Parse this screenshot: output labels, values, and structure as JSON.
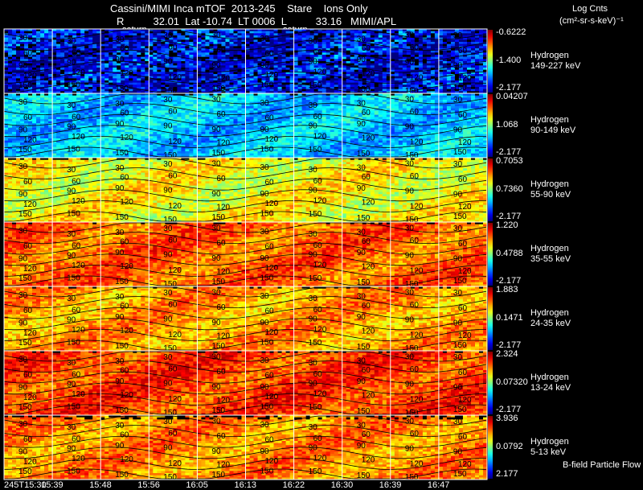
{
  "header": {
    "title": "Cassini/MIMI Inca mTOF  2013-245    Stare    Ions Only",
    "position": "R          32.01  Lat -10.74  LT 0006  L          33.16   MIMI/APL",
    "saturn_labels": [
      "saturn",
      "saturn"
    ],
    "units_title": "Log Cnts",
    "units": "(cm²-sr-s-keV)⁻¹"
  },
  "footer": {
    "flow_label": "B-field Particle Flow"
  },
  "chart_data": {
    "type": "heatmap",
    "x_tick_labels": [
      "245T15:30",
      "15:39",
      "15:48",
      "15:56",
      "16:05",
      "16:13",
      "16:22",
      "16:30",
      "16:39",
      "16:47"
    ],
    "contour_labels": [
      "30",
      "60",
      "90",
      "120",
      "150"
    ],
    "panels": [
      {
        "species": "Hydrogen",
        "energy": "149-227 keV",
        "cbar": [
          "-0.6222",
          "-1.400",
          "-2.177"
        ],
        "level": 0.12
      },
      {
        "species": "Hydrogen",
        "energy": "90-149 keV",
        "cbar": [
          "0.04207",
          "1.068",
          "-2.177"
        ],
        "level": 0.32
      },
      {
        "species": "Hydrogen",
        "energy": "55-90 keV",
        "cbar": [
          "0.7053",
          "0.7360",
          "-2.177"
        ],
        "level": 0.62
      },
      {
        "species": "Hydrogen",
        "energy": "35-55 keV",
        "cbar": [
          "1.220",
          "0.4788",
          "-2.177"
        ],
        "level": 0.78
      },
      {
        "species": "Hydrogen",
        "energy": "24-35 keV",
        "cbar": [
          "1.883",
          "0.1471",
          "-2.177"
        ],
        "level": 0.72
      },
      {
        "species": "Hydrogen",
        "energy": "13-24 keV",
        "cbar": [
          "2.324",
          "0.07320",
          "-2.177"
        ],
        "level": 0.82
      },
      {
        "species": "Hydrogen",
        "energy": "5-13 keV",
        "cbar": [
          "3.936",
          "0.0792",
          "2.177"
        ],
        "level": 0.74
      }
    ],
    "colors": {
      "frame": "#ffffff",
      "contour": "#000000"
    }
  }
}
